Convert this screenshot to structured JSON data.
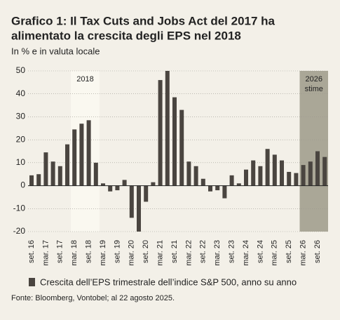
{
  "chart_data": {
    "type": "bar",
    "title": [
      "Grafico 1: Il Tax Cuts and Jobs Act del 2017 ha",
      "alimentato la crescita degli EPS nel 2018"
    ],
    "subtitle": "In % e in valuta locale",
    "categories": [
      "set. 16",
      null,
      "mar. 17",
      null,
      "set. 17",
      null,
      "mar. 18",
      null,
      "set. 18",
      null,
      "mar. 19",
      null,
      "set. 19",
      null,
      "mar. 20",
      null,
      "set. 20",
      null,
      "mar. 21",
      null,
      "set. 21",
      null,
      "mar. 22",
      null,
      "set. 22",
      null,
      "mar. 23",
      null,
      "set. 23",
      null,
      "mar. 24",
      null,
      "set. 24",
      null,
      "mar. 25",
      null,
      "set. 25",
      null,
      "mar. 26",
      null,
      "set. 26",
      null
    ],
    "series": [
      {
        "name": "Crescita dell’EPS trimestrale dell’indice S&P 500, anno su anno",
        "color": "#4a4540",
        "values": [
          4.5,
          5,
          14.5,
          10.5,
          8.5,
          18,
          24.5,
          27,
          28.5,
          10,
          1,
          -2.5,
          -2,
          2.5,
          -14,
          -20,
          -7,
          1.5,
          46,
          50,
          38.5,
          33,
          10.5,
          8.5,
          3,
          -2.5,
          -2,
          -5.5,
          4.5,
          1,
          7,
          11,
          8.5,
          16,
          13.5,
          11,
          6,
          5.5,
          9,
          10.5,
          15,
          12.5
        ]
      }
    ],
    "highlights": [
      {
        "label": [
          "2018"
        ],
        "start": 6,
        "end": 9,
        "color": "#faf8f0"
      },
      {
        "label": [
          "2026",
          "stime"
        ],
        "start": 38,
        "end": 41,
        "color": "#aaa797"
      }
    ],
    "ylim": [
      -20,
      50
    ],
    "yticks": [
      -20,
      -10,
      0,
      10,
      20,
      30,
      40,
      50
    ],
    "grid": true,
    "source": "Fonte: Bloomberg, Vontobel; al 22 agosto 2025."
  }
}
